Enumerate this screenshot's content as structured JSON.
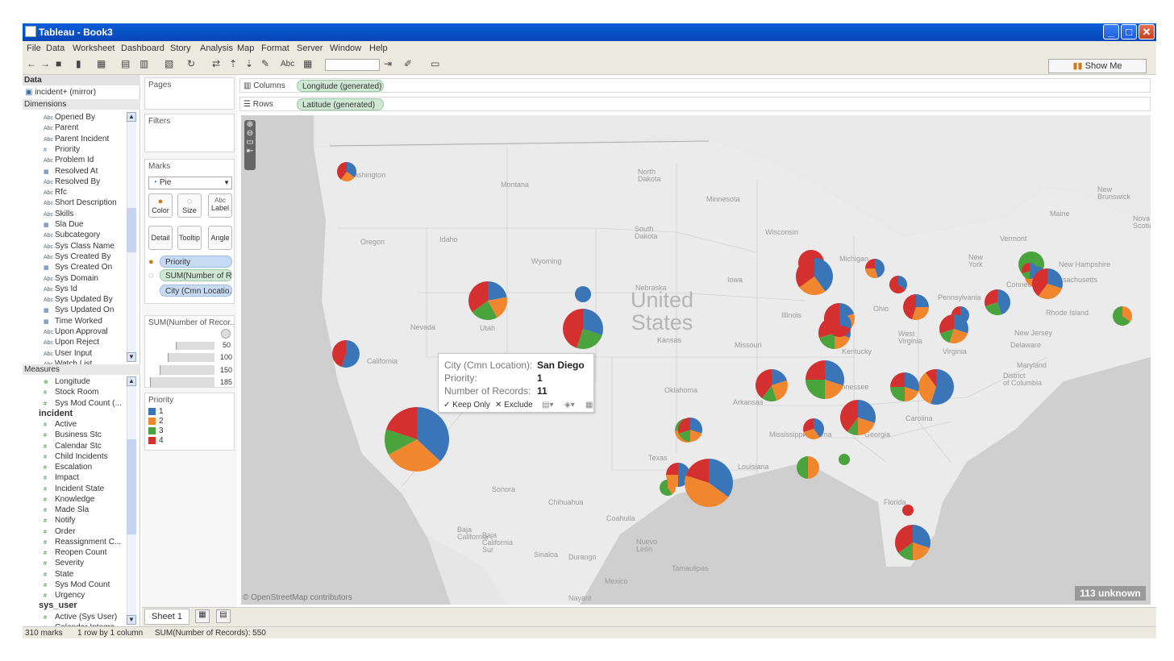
{
  "window": {
    "title": "Tableau - Book3"
  },
  "menu": [
    "File",
    "Data",
    "Worksheet",
    "Dashboard",
    "Story",
    "Analysis",
    "Map",
    "Format",
    "Server",
    "Window",
    "Help"
  ],
  "toolbar": {
    "show_me": "Show Me",
    "abc": "Abc"
  },
  "data_pane": {
    "header": "Data",
    "source": "incident+ (mirror)",
    "dimensions_label": "Dimensions",
    "dimensions": [
      {
        "type": "Abc",
        "name": "Opened By"
      },
      {
        "type": "Abc",
        "name": "Parent"
      },
      {
        "type": "Abc",
        "name": "Parent Incident"
      },
      {
        "type": "#",
        "name": "Priority"
      },
      {
        "type": "Abc",
        "name": "Problem Id"
      },
      {
        "type": "date",
        "name": "Resolved At"
      },
      {
        "type": "Abc",
        "name": "Resolved By"
      },
      {
        "type": "Abc",
        "name": "Rfc"
      },
      {
        "type": "Abc",
        "name": "Short Description"
      },
      {
        "type": "Abc",
        "name": "Skills"
      },
      {
        "type": "date",
        "name": "Sla Due"
      },
      {
        "type": "Abc",
        "name": "Subcategory"
      },
      {
        "type": "Abc",
        "name": "Sys Class Name"
      },
      {
        "type": "Abc",
        "name": "Sys Created By"
      },
      {
        "type": "date",
        "name": "Sys Created On"
      },
      {
        "type": "Abc",
        "name": "Sys Domain"
      },
      {
        "type": "Abc",
        "name": "Sys Id"
      },
      {
        "type": "Abc",
        "name": "Sys Updated By"
      },
      {
        "type": "date",
        "name": "Sys Updated On"
      },
      {
        "type": "date",
        "name": "Time Worked"
      },
      {
        "type": "Abc",
        "name": "Upon Approval"
      },
      {
        "type": "Abc",
        "name": "Upon Reject"
      },
      {
        "type": "Abc",
        "name": "User Input"
      },
      {
        "type": "Abc",
        "name": "Watch List"
      }
    ],
    "measures_label": "Measures",
    "measures_top": [
      {
        "type": "geo",
        "name": "Longitude"
      },
      {
        "type": "#",
        "name": "Stock Room"
      },
      {
        "type": "#",
        "name": "Sys Mod Count (..."
      }
    ],
    "incident_group": "incident",
    "incident_measures": [
      "Active",
      "Business Stc",
      "Calendar Stc",
      "Child Incidents",
      "Escalation",
      "Impact",
      "Incident State",
      "Knowledge",
      "Made Sla",
      "Notify",
      "Order",
      "Reassignment C...",
      "Reopen Count",
      "Severity",
      "State",
      "Sys Mod Count",
      "Urgency"
    ],
    "sys_user_group": "sys_user",
    "sys_user_measures": [
      "Active (Sys User)",
      "Calendar Integra..."
    ]
  },
  "cards": {
    "pages": "Pages",
    "filters": "Filters",
    "marks": "Marks",
    "mark_type": "Pie",
    "mark_buttons": [
      "Color",
      "Size",
      "Label",
      "Detail",
      "Tooltip",
      "Angle"
    ],
    "mark_fields": [
      "Priority",
      "SUM(Number of R...",
      "City (Cmn Locatio..."
    ],
    "size_legend_title": "SUM(Number of Recor...",
    "size_legend_values": [
      "50",
      "100",
      "150",
      "185"
    ],
    "color_legend_title": "Priority",
    "color_legend": [
      {
        "label": "1",
        "color": "#3a75b8"
      },
      {
        "label": "2",
        "color": "#f0872e"
      },
      {
        "label": "3",
        "color": "#4aa33c"
      },
      {
        "label": "4",
        "color": "#d53030"
      }
    ]
  },
  "shelves": {
    "columns_label": "Columns",
    "columns_pill": "Longitude (generated)",
    "rows_label": "Rows",
    "rows_pill": "Latitude (generated)"
  },
  "map": {
    "attribution": "© OpenStreetMap contributors",
    "unknown_badge": "113 unknown",
    "country_label_1": "United",
    "country_label_2": "States",
    "labels": [
      {
        "t": "Washington"
      },
      {
        "t": "Montana"
      },
      {
        "t": "North\nDakota"
      },
      {
        "t": "Minnesota"
      },
      {
        "t": "Oregon"
      },
      {
        "t": "Idaho"
      },
      {
        "t": "South\nDakota"
      },
      {
        "t": "Wyoming"
      },
      {
        "t": "Wisconsin"
      },
      {
        "t": "Michigan"
      },
      {
        "t": "Nebraska"
      },
      {
        "t": "Iowa"
      },
      {
        "t": "Nevada"
      },
      {
        "t": "Utah"
      },
      {
        "t": "Kansas"
      },
      {
        "t": "Illinois"
      },
      {
        "t": "California"
      },
      {
        "t": "Missouri"
      },
      {
        "t": "Oklahoma"
      },
      {
        "t": "Arkansas"
      },
      {
        "t": "Texas"
      },
      {
        "t": "Louisiana"
      },
      {
        "t": "Mississippi"
      },
      {
        "t": "Florida"
      },
      {
        "t": "Baja\nCalifornia"
      },
      {
        "t": "Sonora"
      },
      {
        "t": "Chihuahua"
      },
      {
        "t": "Coahuila"
      },
      {
        "t": "Nuevo\nLeón"
      },
      {
        "t": "Tamaulipas"
      },
      {
        "t": "Baja\nCalifornia\nSur"
      },
      {
        "t": "Sinaloa"
      },
      {
        "t": "Durango"
      },
      {
        "t": "Mexico"
      },
      {
        "t": "Nayarit"
      },
      {
        "t": "Maine"
      },
      {
        "t": "New\nBrunswick"
      },
      {
        "t": "Nova\nScotia"
      },
      {
        "t": "Vermont"
      },
      {
        "t": "New\nYork"
      },
      {
        "t": "New Hampshire"
      },
      {
        "t": "Massachusetts"
      },
      {
        "t": "Connecticut"
      },
      {
        "t": "Rhode Island"
      },
      {
        "t": "Pennsylvania"
      },
      {
        "t": "New Jersey"
      },
      {
        "t": "Delaware"
      },
      {
        "t": "Maryland"
      },
      {
        "t": "District\nof Columbia"
      },
      {
        "t": "Virginia"
      },
      {
        "t": "West\nVirginia"
      },
      {
        "t": "Ohio"
      },
      {
        "t": "Kentucky"
      },
      {
        "t": "Tennessee"
      },
      {
        "t": "Carolina"
      },
      {
        "t": "Georgia"
      },
      {
        "t": "Alabama"
      }
    ]
  },
  "tooltip": {
    "rows": [
      {
        "label": "City (Cmn Location):",
        "value": "San Diego"
      },
      {
        "label": "Priority:",
        "value": "1"
      },
      {
        "label": "Number of Records:",
        "value": "11"
      }
    ],
    "keep_only": "Keep Only",
    "exclude": "Exclude"
  },
  "sheet_tab": "Sheet 1",
  "status": {
    "marks": "310 marks",
    "dims": "1 row by 1 column",
    "sum": "SUM(Number of Records): 550"
  },
  "pies": [
    {
      "r": 12,
      "s": [
        35,
        25,
        0,
        40
      ]
    },
    {
      "r": 40,
      "s": [
        37,
        30,
        13,
        20
      ]
    },
    {
      "r": 24,
      "s": [
        22,
        20,
        23,
        35
      ]
    },
    {
      "r": 17,
      "s": [
        55,
        0,
        0,
        45
      ]
    },
    {
      "r": 10,
      "s": [
        100,
        0,
        0,
        0
      ]
    },
    {
      "r": 25,
      "s": [
        30,
        0,
        25,
        45
      ]
    },
    {
      "r": 16,
      "s": [
        0,
        0,
        0,
        100
      ]
    },
    {
      "r": 23,
      "s": [
        40,
        25,
        0,
        35
      ]
    },
    {
      "r": 19,
      "s": [
        20,
        25,
        25,
        30
      ]
    },
    {
      "r": 20,
      "s": [
        30,
        20,
        20,
        30
      ]
    },
    {
      "r": 12,
      "s": [
        45,
        30,
        0,
        25
      ]
    },
    {
      "r": 11,
      "s": [
        35,
        0,
        0,
        65
      ]
    },
    {
      "r": 16,
      "s": [
        25,
        30,
        0,
        45
      ]
    },
    {
      "r": 11,
      "s": [
        60,
        0,
        0,
        40
      ]
    },
    {
      "r": 18,
      "s": [
        30,
        25,
        15,
        30
      ]
    },
    {
      "r": 16,
      "s": [
        45,
        0,
        25,
        30
      ]
    },
    {
      "r": 16,
      "s": [
        0,
        0,
        100,
        0
      ]
    },
    {
      "r": 13,
      "s": [
        30,
        50,
        0,
        20
      ]
    },
    {
      "r": 10,
      "s": [
        50,
        0,
        20,
        30
      ]
    },
    {
      "r": 19,
      "s": [
        30,
        30,
        0,
        40
      ]
    },
    {
      "r": 20,
      "s": [
        20,
        25,
        15,
        40
      ]
    },
    {
      "r": 24,
      "s": [
        30,
        20,
        25,
        25
      ]
    },
    {
      "r": 15,
      "s": [
        30,
        45,
        25,
        0
      ]
    },
    {
      "r": 15,
      "s": [
        30,
        20,
        20,
        30
      ]
    },
    {
      "r": 15,
      "s": [
        50,
        25,
        0,
        25
      ]
    },
    {
      "r": 30,
      "s": [
        35,
        45,
        0,
        20
      ]
    },
    {
      "r": 10,
      "s": [
        0,
        40,
        60,
        0
      ]
    },
    {
      "r": 22,
      "s": [
        30,
        20,
        10,
        40
      ]
    },
    {
      "r": 22,
      "s": [
        55,
        35,
        0,
        10
      ]
    },
    {
      "r": 13,
      "s": [
        40,
        30,
        0,
        30
      ]
    },
    {
      "r": 14,
      "s": [
        0,
        50,
        50,
        0
      ]
    },
    {
      "r": 7,
      "s": [
        0,
        0,
        100,
        0
      ]
    },
    {
      "r": 7,
      "s": [
        0,
        0,
        0,
        100
      ]
    },
    {
      "r": 22,
      "s": [
        30,
        20,
        15,
        35
      ]
    },
    {
      "r": 15,
      "s": [
        30,
        0,
        0,
        70
      ]
    },
    {
      "r": 18,
      "s": [
        30,
        20,
        25,
        25
      ]
    },
    {
      "r": 13,
      "s": [
        0,
        0,
        0,
        100
      ]
    },
    {
      "r": 12,
      "s": [
        0,
        35,
        65,
        0
      ]
    }
  ]
}
